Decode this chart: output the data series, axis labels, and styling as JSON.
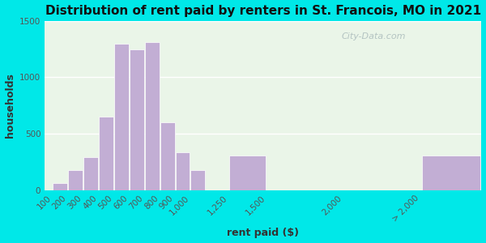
{
  "title": "Distribution of rent paid by renters in St. Francois, MO in 2021",
  "xlabel": "rent paid ($)",
  "ylabel": "households",
  "bar_color": "#c2aed4",
  "bar_edgecolor": "#ffffff",
  "background_outer": "#00e8e8",
  "background_inner": "#eaf5e8",
  "ylim": [
    0,
    1500
  ],
  "yticks": [
    0,
    500,
    1000,
    1500
  ],
  "title_fontsize": 11,
  "axis_label_fontsize": 9,
  "tick_fontsize": 7.5,
  "bar_positions": [
    100,
    200,
    300,
    400,
    500,
    600,
    700,
    800,
    900,
    1000,
    1250,
    1500,
    2000,
    2500
  ],
  "bar_widths": [
    100,
    100,
    100,
    100,
    100,
    100,
    100,
    100,
    100,
    100,
    250,
    250,
    500,
    400
  ],
  "values": [
    60,
    175,
    295,
    650,
    1295,
    1250,
    1310,
    600,
    335,
    180,
    305,
    0,
    0,
    305
  ],
  "xtick_positions": [
    100,
    200,
    300,
    400,
    500,
    600,
    700,
    800,
    900,
    1000,
    1250,
    1500,
    2000,
    2500
  ],
  "xtick_labels": [
    "100",
    "200",
    "300",
    "400",
    "500",
    "600",
    "700",
    "800",
    "900",
    "1,000",
    "1,250",
    "1,500",
    "2,000",
    "> 2,000"
  ],
  "watermark": "City-Data.com"
}
